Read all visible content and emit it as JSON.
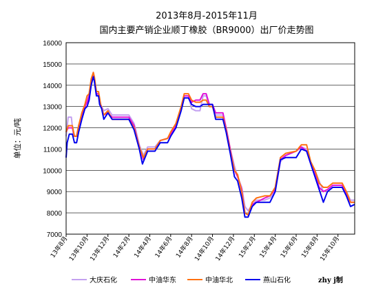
{
  "chart_data": {
    "type": "line",
    "title_line1": "2013年8月-2015年11月",
    "title_line2": "国内主要产销企业顺丁橡胶（BR9000）出厂价走势图",
    "ylabel": "单位：元/吨",
    "ylim": [
      7000,
      16000
    ],
    "yticks": [
      7000,
      8000,
      9000,
      10000,
      11000,
      12000,
      13000,
      14000,
      15000,
      16000
    ],
    "x_range": [
      0,
      27.6
    ],
    "xtick_positions": [
      0,
      2,
      4,
      6,
      8,
      10,
      12,
      14,
      16,
      18,
      20,
      22,
      24,
      26
    ],
    "xtick_labels": [
      "13年8月",
      "13年10月",
      "13年12月",
      "14年2月",
      "14年4月",
      "14年6月",
      "14年8月",
      "14年10月",
      "14年12月",
      "15年2月",
      "15年4月",
      "15年6月",
      "15年8月",
      "15年10月"
    ],
    "grid": "horizontal",
    "legend_position": "bottom",
    "credit": "zhy j制",
    "series": [
      {
        "name": "大庆石化",
        "color": "#c3a0f0",
        "points": [
          [
            0,
            11600
          ],
          [
            0.2,
            12500
          ],
          [
            0.5,
            12500
          ],
          [
            0.7,
            11600
          ],
          [
            1.0,
            11600
          ],
          [
            1.2,
            12000
          ],
          [
            1.5,
            12700
          ],
          [
            1.8,
            13000
          ],
          [
            2.0,
            13300
          ],
          [
            2.2,
            13600
          ],
          [
            2.4,
            14200
          ],
          [
            2.6,
            14500
          ],
          [
            2.7,
            14200
          ],
          [
            2.9,
            13600
          ],
          [
            3.1,
            13500
          ],
          [
            3.3,
            13100
          ],
          [
            3.6,
            12800
          ],
          [
            4.0,
            12900
          ],
          [
            4.4,
            12600
          ],
          [
            5.0,
            12600
          ],
          [
            6.0,
            12600
          ],
          [
            6.5,
            12200
          ],
          [
            7.0,
            11200
          ],
          [
            7.4,
            10700
          ],
          [
            7.8,
            11100
          ],
          [
            8.5,
            11100
          ],
          [
            9.0,
            11400
          ],
          [
            9.7,
            11500
          ],
          [
            10.0,
            11700
          ],
          [
            10.5,
            12200
          ],
          [
            11.0,
            12900
          ],
          [
            11.3,
            13500
          ],
          [
            11.7,
            13500
          ],
          [
            12.0,
            12900
          ],
          [
            12.4,
            12800
          ],
          [
            12.8,
            12800
          ],
          [
            13.1,
            13500
          ],
          [
            13.4,
            13500
          ],
          [
            13.7,
            13000
          ],
          [
            14.0,
            13000
          ],
          [
            14.3,
            12600
          ],
          [
            15.0,
            12600
          ],
          [
            15.3,
            12000
          ],
          [
            15.7,
            11000
          ],
          [
            16.1,
            10200
          ],
          [
            16.4,
            9700
          ],
          [
            16.8,
            9200
          ],
          [
            17.1,
            8300
          ],
          [
            17.4,
            8100
          ],
          [
            17.8,
            8400
          ],
          [
            18.2,
            8600
          ],
          [
            19.0,
            8600
          ],
          [
            19.5,
            8700
          ],
          [
            20.0,
            9000
          ],
          [
            20.5,
            10400
          ],
          [
            21.0,
            10700
          ],
          [
            22.0,
            10900
          ],
          [
            22.5,
            11100
          ],
          [
            23.0,
            11000
          ],
          [
            23.4,
            10400
          ],
          [
            23.8,
            10000
          ],
          [
            24.2,
            9500
          ],
          [
            24.6,
            9000
          ],
          [
            25.0,
            9100
          ],
          [
            25.5,
            9300
          ],
          [
            26.4,
            9300
          ],
          [
            26.8,
            9000
          ],
          [
            27.2,
            8600
          ],
          [
            27.6,
            8600
          ]
        ]
      },
      {
        "name": "中油华东",
        "color": "#e010d8",
        "points": [
          [
            0,
            11800
          ],
          [
            0.2,
            12000
          ],
          [
            0.6,
            12000
          ],
          [
            0.8,
            11600
          ],
          [
            1.0,
            11600
          ],
          [
            1.2,
            12100
          ],
          [
            1.5,
            12600
          ],
          [
            1.8,
            13000
          ],
          [
            2.0,
            13200
          ],
          [
            2.2,
            13500
          ],
          [
            2.4,
            14200
          ],
          [
            2.6,
            14600
          ],
          [
            2.7,
            14300
          ],
          [
            2.9,
            13600
          ],
          [
            3.1,
            13600
          ],
          [
            3.3,
            13100
          ],
          [
            3.6,
            12600
          ],
          [
            4.0,
            12700
          ],
          [
            4.4,
            12500
          ],
          [
            5.0,
            12500
          ],
          [
            6.0,
            12500
          ],
          [
            6.5,
            12100
          ],
          [
            7.0,
            11100
          ],
          [
            7.4,
            10500
          ],
          [
            7.8,
            11000
          ],
          [
            8.5,
            11000
          ],
          [
            9.0,
            11400
          ],
          [
            9.7,
            11500
          ],
          [
            10.0,
            11700
          ],
          [
            10.5,
            12100
          ],
          [
            11.0,
            12900
          ],
          [
            11.3,
            13500
          ],
          [
            11.7,
            13500
          ],
          [
            12.0,
            13200
          ],
          [
            12.4,
            13300
          ],
          [
            12.8,
            13300
          ],
          [
            13.1,
            13600
          ],
          [
            13.4,
            13600
          ],
          [
            13.7,
            13100
          ],
          [
            14.0,
            13100
          ],
          [
            14.3,
            12700
          ],
          [
            15.0,
            12700
          ],
          [
            15.3,
            12000
          ],
          [
            15.7,
            11000
          ],
          [
            16.1,
            10000
          ],
          [
            16.4,
            9700
          ],
          [
            16.8,
            9100
          ],
          [
            17.1,
            8000
          ],
          [
            17.4,
            7900
          ],
          [
            17.8,
            8400
          ],
          [
            18.2,
            8500
          ],
          [
            19.0,
            8700
          ],
          [
            19.5,
            8800
          ],
          [
            20.0,
            9100
          ],
          [
            20.5,
            10500
          ],
          [
            21.0,
            10700
          ],
          [
            22.0,
            10900
          ],
          [
            22.5,
            11100
          ],
          [
            23.0,
            10900
          ],
          [
            23.4,
            10300
          ],
          [
            23.8,
            9900
          ],
          [
            24.2,
            9200
          ],
          [
            24.6,
            9000
          ],
          [
            25.0,
            9100
          ],
          [
            25.5,
            9300
          ],
          [
            26.4,
            9300
          ],
          [
            26.8,
            8900
          ],
          [
            27.2,
            8500
          ],
          [
            27.6,
            8500
          ]
        ]
      },
      {
        "name": "中油华北",
        "color": "#ff7010",
        "points": [
          [
            0,
            11800
          ],
          [
            0.2,
            12100
          ],
          [
            0.6,
            12100
          ],
          [
            0.8,
            11600
          ],
          [
            1.0,
            11600
          ],
          [
            1.2,
            12100
          ],
          [
            1.5,
            12700
          ],
          [
            1.8,
            13100
          ],
          [
            2.0,
            13500
          ],
          [
            2.2,
            13600
          ],
          [
            2.4,
            14300
          ],
          [
            2.6,
            14600
          ],
          [
            2.7,
            14400
          ],
          [
            2.9,
            13700
          ],
          [
            3.1,
            13700
          ],
          [
            3.3,
            13100
          ],
          [
            3.6,
            12600
          ],
          [
            4.0,
            12800
          ],
          [
            4.4,
            12400
          ],
          [
            5.0,
            12400
          ],
          [
            6.0,
            12400
          ],
          [
            6.5,
            12000
          ],
          [
            7.0,
            11100
          ],
          [
            7.4,
            10600
          ],
          [
            7.8,
            11000
          ],
          [
            8.5,
            11000
          ],
          [
            9.0,
            11400
          ],
          [
            9.7,
            11500
          ],
          [
            10.0,
            11800
          ],
          [
            10.5,
            12200
          ],
          [
            11.0,
            13000
          ],
          [
            11.3,
            13600
          ],
          [
            11.7,
            13600
          ],
          [
            12.0,
            13300
          ],
          [
            12.4,
            13200
          ],
          [
            12.8,
            13200
          ],
          [
            13.1,
            13300
          ],
          [
            13.4,
            13300
          ],
          [
            13.7,
            13000
          ],
          [
            14.0,
            13000
          ],
          [
            14.3,
            12500
          ],
          [
            15.0,
            12500
          ],
          [
            15.3,
            11900
          ],
          [
            15.7,
            10900
          ],
          [
            16.1,
            10000
          ],
          [
            16.4,
            9800
          ],
          [
            16.8,
            9000
          ],
          [
            17.1,
            8000
          ],
          [
            17.4,
            7900
          ],
          [
            17.8,
            8500
          ],
          [
            18.2,
            8700
          ],
          [
            19.0,
            8800
          ],
          [
            19.5,
            8800
          ],
          [
            20.0,
            9200
          ],
          [
            20.5,
            10600
          ],
          [
            21.0,
            10800
          ],
          [
            22.0,
            10900
          ],
          [
            22.5,
            11200
          ],
          [
            23.0,
            11200
          ],
          [
            23.4,
            10400
          ],
          [
            23.8,
            10000
          ],
          [
            24.2,
            9400
          ],
          [
            24.6,
            9200
          ],
          [
            25.0,
            9200
          ],
          [
            25.5,
            9400
          ],
          [
            26.4,
            9400
          ],
          [
            26.8,
            9000
          ],
          [
            27.2,
            8500
          ],
          [
            27.6,
            8500
          ]
        ]
      },
      {
        "name": "燕山石化",
        "color": "#0000ee",
        "points": [
          [
            0,
            10600
          ],
          [
            0.1,
            11300
          ],
          [
            0.3,
            11700
          ],
          [
            0.6,
            11700
          ],
          [
            0.8,
            11300
          ],
          [
            1.0,
            11300
          ],
          [
            1.2,
            11800
          ],
          [
            1.5,
            12400
          ],
          [
            1.8,
            12900
          ],
          [
            2.0,
            13000
          ],
          [
            2.2,
            13300
          ],
          [
            2.4,
            14000
          ],
          [
            2.6,
            14400
          ],
          [
            2.7,
            14200
          ],
          [
            2.9,
            13500
          ],
          [
            3.1,
            13500
          ],
          [
            3.2,
            13100
          ],
          [
            3.4,
            12900
          ],
          [
            3.6,
            12400
          ],
          [
            4.0,
            12700
          ],
          [
            4.4,
            12400
          ],
          [
            5.0,
            12400
          ],
          [
            6.0,
            12400
          ],
          [
            6.5,
            11900
          ],
          [
            7.0,
            11000
          ],
          [
            7.3,
            10300
          ],
          [
            7.8,
            10900
          ],
          [
            8.5,
            10900
          ],
          [
            9.0,
            11300
          ],
          [
            9.7,
            11300
          ],
          [
            10.0,
            11600
          ],
          [
            10.5,
            12000
          ],
          [
            11.0,
            12800
          ],
          [
            11.3,
            13400
          ],
          [
            11.7,
            13400
          ],
          [
            12.0,
            13100
          ],
          [
            12.4,
            13000
          ],
          [
            12.8,
            13000
          ],
          [
            13.1,
            13100
          ],
          [
            13.4,
            13100
          ],
          [
            13.7,
            13100
          ],
          [
            14.0,
            13100
          ],
          [
            14.3,
            12400
          ],
          [
            15.0,
            12400
          ],
          [
            15.3,
            11800
          ],
          [
            15.7,
            10800
          ],
          [
            16.1,
            9700
          ],
          [
            16.4,
            9500
          ],
          [
            16.8,
            8700
          ],
          [
            17.1,
            7800
          ],
          [
            17.4,
            7800
          ],
          [
            17.8,
            8300
          ],
          [
            18.2,
            8500
          ],
          [
            19.0,
            8500
          ],
          [
            19.5,
            8500
          ],
          [
            20.0,
            9000
          ],
          [
            20.5,
            10500
          ],
          [
            21.0,
            10600
          ],
          [
            22.0,
            10600
          ],
          [
            22.5,
            11000
          ],
          [
            23.0,
            10900
          ],
          [
            23.4,
            10300
          ],
          [
            23.8,
            9700
          ],
          [
            24.2,
            9100
          ],
          [
            24.6,
            8500
          ],
          [
            25.0,
            9000
          ],
          [
            25.5,
            9200
          ],
          [
            26.4,
            9200
          ],
          [
            26.8,
            8800
          ],
          [
            27.2,
            8300
          ],
          [
            27.6,
            8400
          ]
        ]
      }
    ]
  }
}
